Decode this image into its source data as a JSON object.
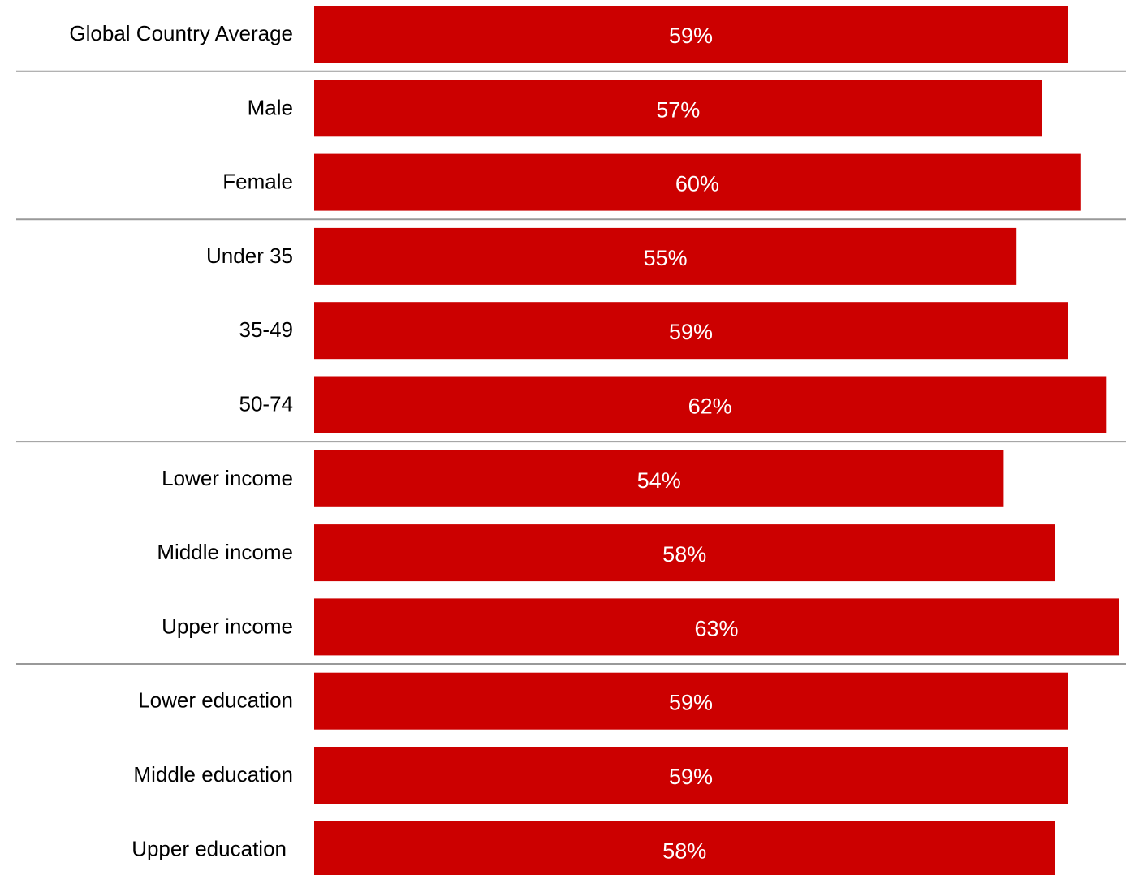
{
  "chart_data": {
    "type": "bar",
    "orientation": "horizontal",
    "categories": [
      "Global Country Average",
      "Male",
      "Female",
      "Under 35",
      "35-49",
      "50-74",
      "Lower income",
      "Middle income",
      "Upper income",
      "Lower education",
      "Middle education",
      "Upper education"
    ],
    "values": [
      59,
      57,
      60,
      55,
      59,
      62,
      54,
      58,
      63,
      59,
      59,
      58
    ],
    "data_labels": [
      "59%",
      "57%",
      "60%",
      "55%",
      "59%",
      "62%",
      "54%",
      "58%",
      "63%",
      "59%",
      "59%",
      "58%"
    ],
    "groups": [
      [
        "Global Country Average"
      ],
      [
        "Male",
        "Female"
      ],
      [
        "Under 35",
        "35-49",
        "50-74"
      ],
      [
        "Lower income",
        "Middle income",
        "Upper income"
      ],
      [
        "Lower education",
        "Middle education",
        "Upper education"
      ]
    ],
    "unit": "%",
    "title": "",
    "xlabel": "",
    "ylabel": "",
    "xlim": [
      0,
      63
    ],
    "grid": false,
    "legend": "none",
    "colors": {
      "bar": "#cc0000",
      "bar_label": "#ffffff",
      "separator": "#999999",
      "category_label": "#000000"
    }
  }
}
